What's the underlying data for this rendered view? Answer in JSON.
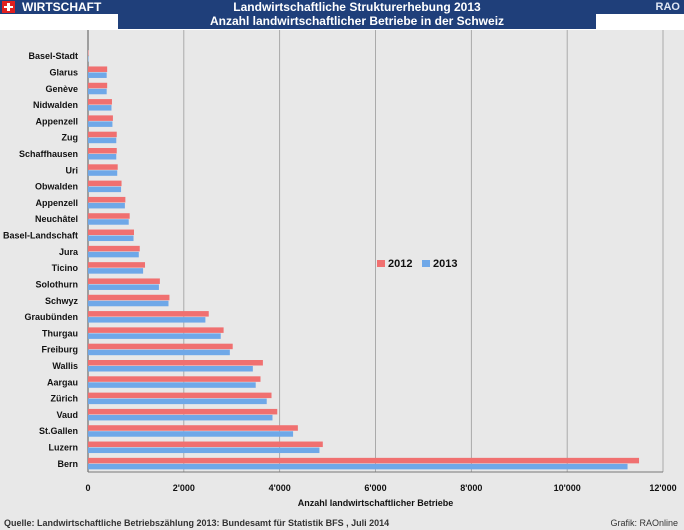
{
  "header": {
    "section": "WIRTSCHAFT",
    "title": "Landwirtschaftliche Strukturerhebung 2013",
    "subtitle": "Anzahl landwirtschaftlicher Betriebe in der Schweiz",
    "brand": "RAO",
    "bar_color": "#1f3f7a"
  },
  "footer": {
    "source": "Quelle: Landwirtschaftliche Betriebszählung 2013: Bundesamt für Statistik BFS , Juli 2014",
    "credit": "Grafik: RAOnline"
  },
  "chart_data": {
    "type": "bar",
    "orientation": "horizontal",
    "title": "Anzahl landwirtschaftlicher Betriebe in der Schweiz",
    "xlabel": "Anzahl landwirtschaftlicher Betriebe",
    "ylabel": "",
    "xlim": [
      0,
      12000
    ],
    "xticks": [
      0,
      2000,
      4000,
      6000,
      8000,
      10000,
      12000
    ],
    "xtick_labels": [
      "0",
      "2'000",
      "4'000",
      "6'000",
      "8'000",
      "10'000",
      "12'000"
    ],
    "grid": true,
    "legend_position": "center-right",
    "categories": [
      "Basel-Stadt",
      "Glarus",
      "Genève",
      "Nidwalden",
      "Appenzell",
      "Zug",
      "Schaffhausen",
      "Uri",
      "Obwalden",
      "Appenzell",
      "Neuchâtel",
      "Basel-Landschaft",
      "Jura",
      "Ticino",
      "Solothurn",
      "Schwyz",
      "Graubünden",
      "Thurgau",
      "Freiburg",
      "Wallis",
      "Aargau",
      "Zürich",
      "Vaud",
      "St.Gallen",
      "Luzern",
      "Bern"
    ],
    "series": [
      {
        "name": "2012",
        "color": "#f07070",
        "values": [
          10,
          400,
          400,
          500,
          520,
          600,
          600,
          620,
          700,
          780,
          870,
          960,
          1080,
          1190,
          1500,
          1700,
          2520,
          2830,
          3020,
          3650,
          3600,
          3830,
          3950,
          4380,
          4900,
          11500
        ]
      },
      {
        "name": "2013",
        "color": "#6fa8e8",
        "values": [
          10,
          390,
          390,
          490,
          510,
          590,
          590,
          610,
          690,
          770,
          850,
          950,
          1060,
          1150,
          1480,
          1680,
          2450,
          2770,
          2960,
          3440,
          3500,
          3730,
          3850,
          4280,
          4830,
          11260
        ]
      }
    ]
  }
}
